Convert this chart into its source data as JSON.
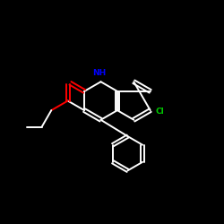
{
  "background_color": "#000000",
  "bond_color": "#ffffff",
  "nh_color": "#0000ff",
  "o_color": "#ff0000",
  "cl_color": "#00cc00",
  "figsize": [
    2.5,
    2.5
  ],
  "dpi": 100,
  "lw": 1.4,
  "s": 0.85
}
